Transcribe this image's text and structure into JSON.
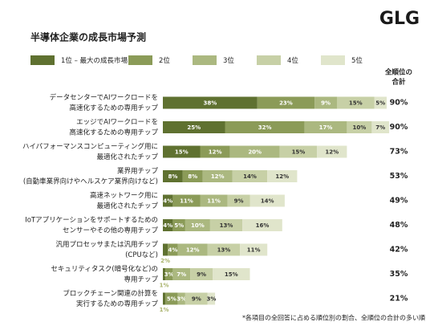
{
  "chart_data": {
    "type": "stacked-bar-horizontal",
    "logo": "GLG",
    "title": "半導体企業の成長市場予測",
    "categories": [
      [
        "データセンターでAIワークロードを",
        "高速化するための専用チップ"
      ],
      [
        "エッジでAIワークロードを",
        "高速化するための専用チップ"
      ],
      [
        "ハイパフォーマンスコンピューティング用に",
        "最適化されたチップ"
      ],
      [
        "業界用チップ",
        "(自動車業界向けやヘルスケア業界向けなど)"
      ],
      [
        "高速ネットワーク用に",
        "最適化されたチップ"
      ],
      [
        "IoTアプリケーションをサポートするための",
        "センサーやその他の専用チップ"
      ],
      [
        "汎用プロセッサまたは汎用チップ",
        "(CPUなど)"
      ],
      [
        "セキュリティタスク(暗号化など)の",
        "専用チップ"
      ],
      [
        "ブロックチェーン関連の計算を",
        "実行するための専用チップ"
      ]
    ],
    "series": [
      {
        "name": "1位 – 最大の成長市場",
        "color": "#5f7130",
        "values": [
          38,
          25,
          15,
          8,
          4,
          4,
          2,
          1,
          1
        ],
        "value_labels": [
          "38%",
          "25%",
          "15%",
          "8%",
          "4%",
          "4%",
          "2%",
          "1%",
          "1%"
        ]
      },
      {
        "name": "2位",
        "color": "#8b9b58",
        "values": [
          23,
          32,
          12,
          8,
          11,
          5,
          4,
          3,
          5
        ],
        "value_labels": [
          "23%",
          "32%",
          "12%",
          "8%",
          "11%",
          "5%",
          "4%",
          "3%",
          "5%"
        ]
      },
      {
        "name": "3位",
        "color": "#abb880",
        "values": [
          9,
          17,
          20,
          12,
          11,
          10,
          12,
          7,
          3
        ],
        "value_labels": [
          "9%",
          "17%",
          "20%",
          "12%",
          "11%",
          "10%",
          "12%",
          "7%",
          "3%"
        ]
      },
      {
        "name": "4位",
        "color": "#c7d0a6",
        "values": [
          15,
          10,
          15,
          14,
          9,
          13,
          13,
          9,
          9
        ],
        "value_labels": [
          "15%",
          "10%",
          "15%",
          "14%",
          "9%",
          "13%",
          "13%",
          "9%",
          "9%"
        ]
      },
      {
        "name": "5位",
        "color": "#e0e5cb",
        "values": [
          5,
          7,
          12,
          12,
          14,
          16,
          11,
          15,
          3
        ],
        "value_labels": [
          "5%",
          "7%",
          "12%",
          "12%",
          "14%",
          "16%",
          "11%",
          "15%",
          "3%"
        ]
      }
    ],
    "totals_header": [
      "全順位の",
      "合計"
    ],
    "totals": [
      90,
      90,
      73,
      53,
      49,
      48,
      42,
      35,
      21
    ],
    "total_labels": [
      "90%",
      "90%",
      "73%",
      "53%",
      "49%",
      "48%",
      "42%",
      "35%",
      "21%"
    ],
    "footnote": "*各項目の全回答に占める順位別の割合、全順位の合計の多い順"
  }
}
